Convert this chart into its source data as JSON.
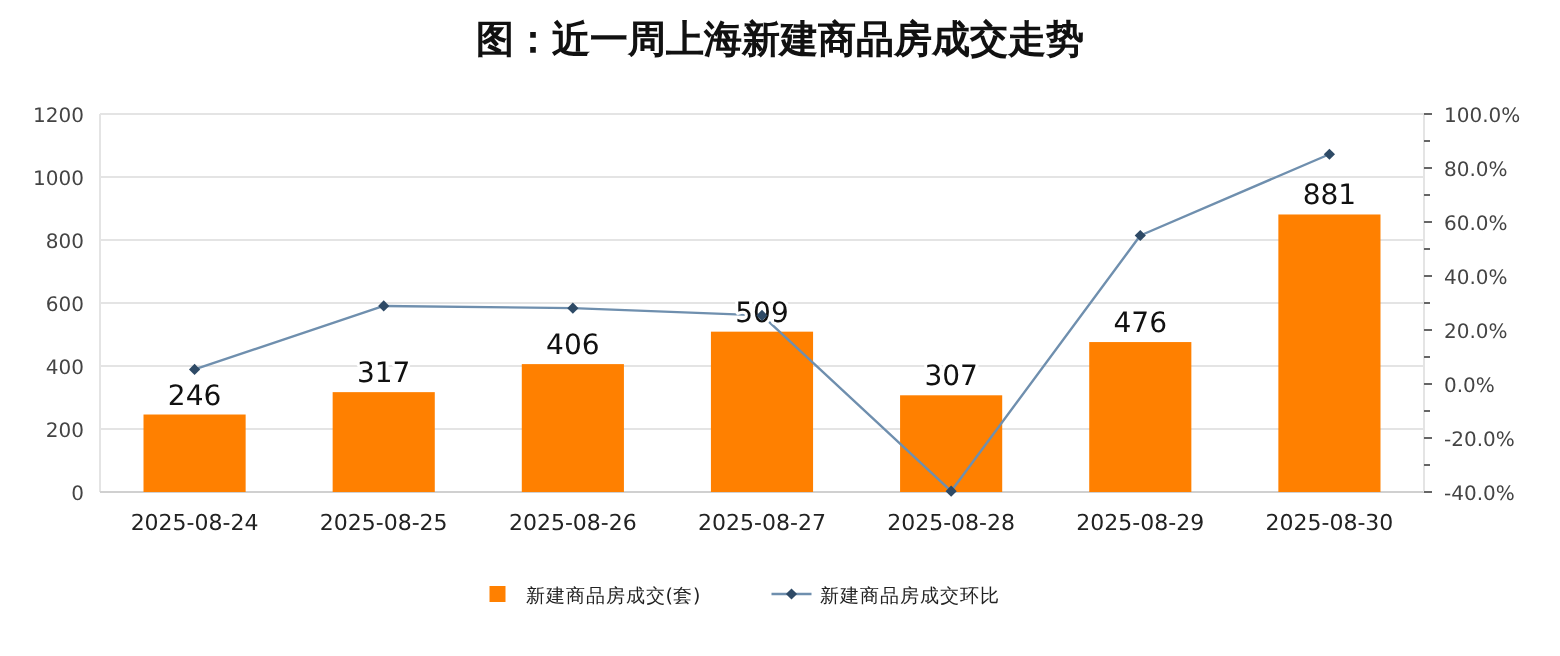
{
  "chart_data": {
    "type": "bar",
    "title": "图：近一周上海新建商品房成交走势",
    "categories": [
      "2025-08-24",
      "2025-08-25",
      "2025-08-26",
      "2025-08-27",
      "2025-08-28",
      "2025-08-29",
      "2025-08-30"
    ],
    "series": [
      {
        "name": "新建商品房成交(套)",
        "color": "#ff8000",
        "values": [
          246,
          317,
          406,
          509,
          307,
          476,
          881
        ],
        "value_labels": [
          "246",
          "317",
          "406",
          "509",
          "307",
          "476",
          "881"
        ]
      },
      {
        "name": "新建商品房成交环比",
        "type": "line",
        "axis": "y2",
        "color": "#6f8fae",
        "marker": "diamond",
        "values": [
          5.4,
          28.9,
          28.1,
          25.4,
          -39.7,
          55.0,
          85.1
        ]
      }
    ],
    "ylim": [
      0,
      1200
    ],
    "yticks": [
      0,
      200,
      400,
      600,
      800,
      1000,
      1200
    ],
    "y2lim": [
      -40,
      100
    ],
    "y2ticks": [
      {
        "value": -40,
        "label": "-40.0%"
      },
      {
        "value": -20,
        "label": "-20.0%"
      },
      {
        "value": 0,
        "label": "0.0%"
      },
      {
        "value": 20,
        "label": "20.0%"
      },
      {
        "value": 40,
        "label": "40.0%"
      },
      {
        "value": 60,
        "label": "60.0%"
      },
      {
        "value": 80,
        "label": "80.0%"
      },
      {
        "value": 100,
        "label": "100.0%"
      }
    ],
    "grid": "y",
    "legend": "bottom"
  }
}
